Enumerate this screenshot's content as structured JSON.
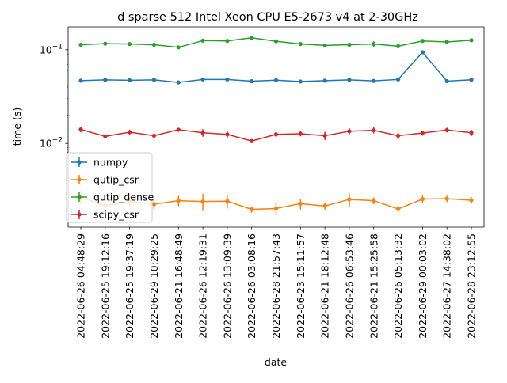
{
  "chart_data": {
    "type": "line",
    "title": "d sparse 512 Intel Xeon CPU E5-2673 v4 at 2-30GHz",
    "xlabel": "date",
    "ylabel": "time (s)",
    "yscale": "log",
    "ylim": [
      0.00128,
      0.175
    ],
    "yticks": [
      {
        "value": 0.01,
        "base": "10",
        "exp": "−2"
      },
      {
        "value": 0.1,
        "base": "10",
        "exp": "−1"
      }
    ],
    "grid": false,
    "legend_position": "lower-left",
    "categories": [
      "2022-06-26 04:48:29",
      "2022-06-25 19:12:16",
      "2022-06-25 19:37:19",
      "2022-06-29 10:29:25",
      "2022-06-21 16:48:49",
      "2022-06-26 12:19:31",
      "2022-06-26 13:09:39",
      "2022-06-26 03:08:16",
      "2022-06-28 21:57:43",
      "2022-06-23 15:11:57",
      "2022-06-21 18:12:48",
      "2022-06-26 06:53:46",
      "2022-06-21 15:25:58",
      "2022-06-26 05:13:32",
      "2022-06-29 00:03:02",
      "2022-06-27 14:38:02",
      "2022-06-28 23:12:55"
    ],
    "series": [
      {
        "name": "numpy",
        "color": "#1f77b4",
        "values": [
          0.0468,
          0.0477,
          0.0472,
          0.0477,
          0.0448,
          0.0482,
          0.0482,
          0.0462,
          0.0473,
          0.0458,
          0.0468,
          0.0477,
          0.0465,
          0.0482,
          0.094,
          0.0462,
          0.0478
        ],
        "errors": [
          0.001,
          0.001,
          0.001,
          0.001,
          0.001,
          0.0012,
          0.0012,
          0.001,
          0.001,
          0.001,
          0.001,
          0.001,
          0.001,
          0.001,
          0.002,
          0.001,
          0.001
        ]
      },
      {
        "name": "qutip_csr",
        "color": "#ff7f0e",
        "values": [
          0.00265,
          0.00218,
          0.00238,
          0.00225,
          0.00245,
          0.0024,
          0.00242,
          0.00198,
          0.00202,
          0.00228,
          0.00215,
          0.00253,
          0.00245,
          0.002,
          0.00255,
          0.00257,
          0.00248
        ],
        "errors": [
          0.0004,
          0.0002,
          0.0003,
          0.0003,
          0.0003,
          0.0005,
          0.0004,
          0.00015,
          0.0003,
          0.0003,
          0.0002,
          0.0004,
          0.0002,
          0.00015,
          0.00025,
          0.0002,
          0.0002
        ]
      },
      {
        "name": "qutip_dense",
        "color": "#2ca02c",
        "values": [
          0.113,
          0.116,
          0.115,
          0.113,
          0.106,
          0.125,
          0.124,
          0.134,
          0.123,
          0.115,
          0.111,
          0.113,
          0.115,
          0.109,
          0.124,
          0.121,
          0.126
        ],
        "errors": [
          0.003,
          0.003,
          0.003,
          0.003,
          0.003,
          0.003,
          0.003,
          0.004,
          0.003,
          0.003,
          0.003,
          0.003,
          0.008,
          0.003,
          0.003,
          0.003,
          0.003
        ]
      },
      {
        "name": "scipy_csr",
        "color": "#d62728",
        "values": [
          0.0141,
          0.0119,
          0.0132,
          0.0121,
          0.014,
          0.013,
          0.0125,
          0.0106,
          0.0125,
          0.0127,
          0.0121,
          0.0135,
          0.0138,
          0.0121,
          0.0129,
          0.0139,
          0.013
        ],
        "errors": [
          0.001,
          0.0006,
          0.0008,
          0.0007,
          0.0006,
          0.0012,
          0.001,
          0.0005,
          0.0008,
          0.0008,
          0.0012,
          0.001,
          0.001,
          0.001,
          0.0008,
          0.0008,
          0.001
        ]
      }
    ]
  }
}
